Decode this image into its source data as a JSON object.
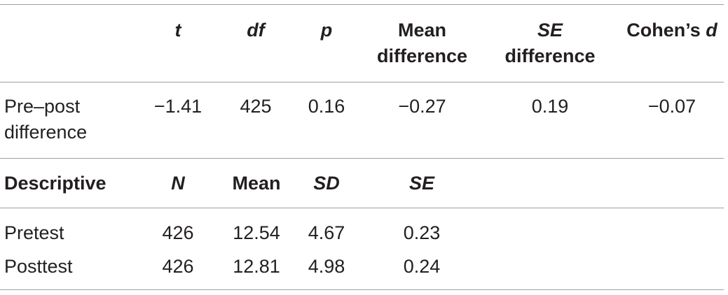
{
  "test_header": {
    "t": "t",
    "df": "df",
    "p": "p",
    "mean_diff_line1": "Mean",
    "mean_diff_line2": "difference",
    "se_diff_line1": "SE",
    "se_diff_line2": "difference",
    "cohens_prefix": "Cohen’s ",
    "cohens_d": "d"
  },
  "test_row": {
    "label_line1": "Pre–post",
    "label_line2": "difference",
    "t": "−1.41",
    "df": "425",
    "p": "0.16",
    "mean_difference": "−0.27",
    "se_difference": "0.19",
    "cohens_d": "−0.07"
  },
  "desc_header": {
    "label": "Descriptive",
    "n": "N",
    "mean": "Mean",
    "sd": "SD",
    "se": "SE"
  },
  "desc_rows": [
    {
      "label": "Pretest",
      "n": "426",
      "mean": "12.54",
      "sd": "4.67",
      "se": "0.23"
    },
    {
      "label": "Posttest",
      "n": "426",
      "mean": "12.81",
      "sd": "4.98",
      "se": "0.24"
    }
  ]
}
